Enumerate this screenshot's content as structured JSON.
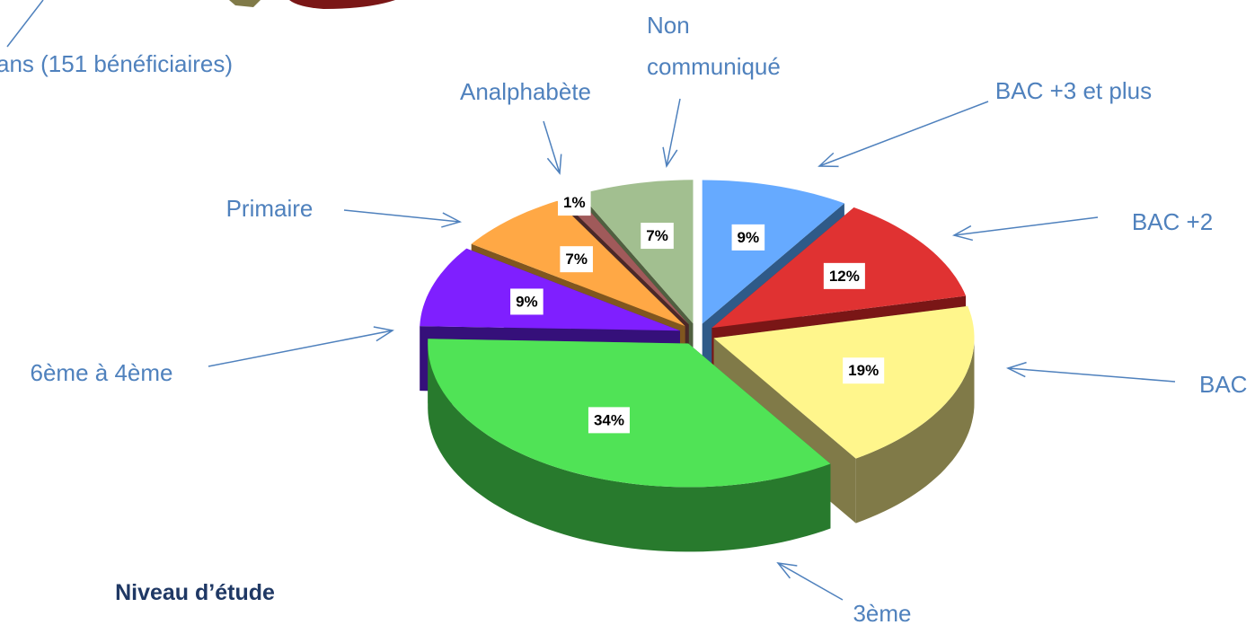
{
  "chart_data": {
    "type": "pie3d",
    "title": "Niveau d’étude",
    "annotations": [
      "ans (151 bénéficiaires)"
    ],
    "categories": [
      "BAC +3 et plus",
      "BAC +2",
      "BAC",
      "3ème",
      "6ème à 4ème",
      "Primaire",
      "Analphabète",
      "Non communiqué"
    ],
    "values": [
      9,
      12,
      19,
      34,
      9,
      7,
      1,
      7
    ],
    "value_labels": [
      "9%",
      "12%",
      "19%",
      "34%",
      "9%",
      "7%",
      "1%",
      "7%"
    ],
    "colors": [
      "#66aaff",
      "#e03232",
      "#fff68c",
      "#50e356",
      "#7f1fff",
      "#ffa845",
      "#a05a5a",
      "#a2bf90"
    ],
    "side_colors": [
      "#2f5a88",
      "#7a1616",
      "#807a48",
      "#287a2d",
      "#35107a",
      "#80561f",
      "#4a2828",
      "#506040"
    ]
  }
}
